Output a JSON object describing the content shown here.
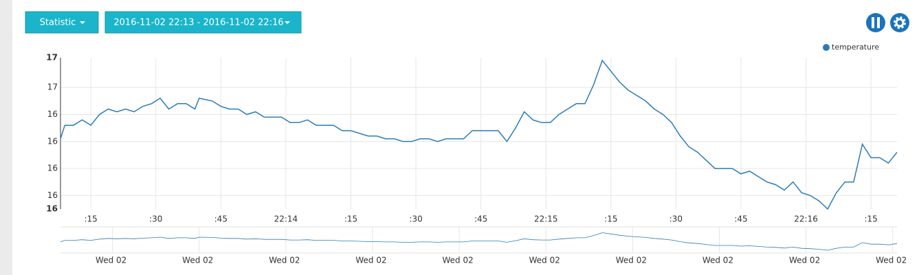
{
  "toolbar": {
    "statistic_button": "Statistic",
    "range_button": "2016-11-02 22:13 - 2016-11-02 22:16"
  },
  "chart_data": {
    "type": "line",
    "x": [
      8,
      9,
      11,
      13,
      15,
      17,
      19,
      21,
      23,
      25,
      27,
      29,
      31,
      33,
      35,
      37,
      39,
      40,
      43,
      45,
      47,
      49,
      51,
      53,
      55,
      57,
      59,
      61,
      63,
      65,
      67,
      69,
      71,
      73,
      75,
      77,
      79,
      81,
      83,
      85,
      87,
      89,
      91,
      93,
      95,
      97,
      99,
      101,
      103,
      105,
      107,
      109,
      111,
      113,
      115,
      117,
      119,
      121,
      123,
      125,
      127,
      129,
      131,
      133,
      135,
      137,
      139,
      141,
      143,
      145,
      147,
      149,
      151,
      153,
      155,
      157,
      159,
      161,
      163,
      165,
      167,
      169,
      171,
      173,
      175,
      177,
      179,
      181,
      183,
      185,
      187,
      189,
      191,
      193,
      195,
      197,
      199,
      201
    ],
    "series": [
      {
        "name": "temperature",
        "color": "#2b7bb5",
        "values": [
          16.31,
          16.36,
          16.36,
          16.38,
          16.36,
          16.4,
          16.42,
          16.41,
          16.42,
          16.41,
          16.43,
          16.44,
          16.46,
          16.42,
          16.44,
          16.44,
          16.42,
          16.46,
          16.45,
          16.43,
          16.42,
          16.42,
          16.4,
          16.41,
          16.39,
          16.39,
          16.39,
          16.37,
          16.37,
          16.38,
          16.36,
          16.36,
          16.36,
          16.34,
          16.34,
          16.33,
          16.32,
          16.32,
          16.31,
          16.31,
          16.3,
          16.3,
          16.31,
          16.31,
          16.3,
          16.31,
          16.31,
          16.31,
          16.34,
          16.34,
          16.34,
          16.34,
          16.3,
          16.35,
          16.41,
          16.38,
          16.37,
          16.37,
          16.4,
          16.42,
          16.44,
          16.44,
          16.51,
          16.6,
          16.56,
          16.52,
          16.49,
          16.47,
          16.45,
          16.42,
          16.4,
          16.37,
          16.32,
          16.28,
          16.26,
          16.23,
          16.2,
          16.2,
          16.2,
          16.18,
          16.19,
          16.17,
          16.15,
          16.14,
          16.12,
          16.15,
          16.11,
          16.1,
          16.08,
          16.05,
          16.11,
          16.15,
          16.15,
          16.29,
          16.24,
          16.24,
          16.22,
          16.26
        ]
      }
    ],
    "xlim": [
      8,
      201
    ],
    "ylim": [
      16.05,
      16.61
    ],
    "xticks": [
      {
        "value": 15,
        "label": ":15"
      },
      {
        "value": 30,
        "label": ":30"
      },
      {
        "value": 45,
        "label": ":45"
      },
      {
        "value": 60,
        "label": "22:14"
      },
      {
        "value": 75,
        "label": ":15"
      },
      {
        "value": 90,
        "label": ":30"
      },
      {
        "value": 105,
        "label": ":45"
      },
      {
        "value": 120,
        "label": "22:15"
      },
      {
        "value": 135,
        "label": ":15"
      },
      {
        "value": 150,
        "label": ":30"
      },
      {
        "value": 165,
        "label": ":45"
      },
      {
        "value": 180,
        "label": "22:16"
      },
      {
        "value": 195,
        "label": ":15"
      }
    ],
    "yticks": [
      {
        "value": 16.61,
        "label": "17"
      },
      {
        "value": 16.5,
        "label": "17"
      },
      {
        "value": 16.4,
        "label": "16"
      },
      {
        "value": 16.3,
        "label": "16"
      },
      {
        "value": 16.2,
        "label": "16"
      },
      {
        "value": 16.1,
        "label": "16"
      },
      {
        "value": 16.05,
        "label": "16"
      }
    ],
    "grid": true,
    "legend": "top-right"
  },
  "navigator": {
    "xticks": [
      {
        "value": 20,
        "label": "Wed 02"
      },
      {
        "value": 40,
        "label": "Wed 02"
      },
      {
        "value": 60,
        "label": "Wed 02"
      },
      {
        "value": 80,
        "label": "Wed 02"
      },
      {
        "value": 100,
        "label": "Wed 02"
      },
      {
        "value": 120,
        "label": "Wed 02"
      },
      {
        "value": 140,
        "label": "Wed 02"
      },
      {
        "value": 160,
        "label": "Wed 02"
      },
      {
        "value": 180,
        "label": "Wed 02"
      },
      {
        "value": 200,
        "label": "Wed 02"
      }
    ]
  }
}
